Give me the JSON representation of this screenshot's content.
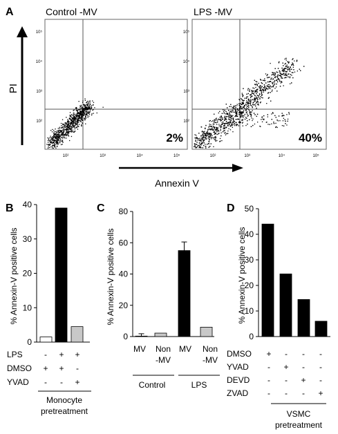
{
  "figure": {
    "panel_a": {
      "label": "A",
      "y_axis_label": "PI",
      "x_axis_label": "Annexin V",
      "plots": [
        {
          "title": "Control  -MV",
          "percent_label": "2%",
          "x_ticks": [
            "10²",
            "10³",
            "10⁴",
            "10⁵"
          ],
          "y_ticks": [
            "10⁵",
            "10⁴",
            "10³",
            "10²"
          ]
        },
        {
          "title": "LPS  -MV",
          "percent_label": "40%",
          "x_ticks": [
            "10²",
            "10³",
            "10⁴",
            "10⁵"
          ],
          "y_ticks": [
            "10⁵",
            "10⁴",
            "10³",
            "10²"
          ]
        }
      ]
    },
    "panel_b": {
      "label": "B",
      "row_labels": [
        "LPS",
        "DMSO",
        "YVAD"
      ],
      "rows": [
        [
          "-",
          "+",
          "+"
        ],
        [
          "+",
          "+",
          "-"
        ],
        [
          "-",
          "-",
          "+"
        ]
      ],
      "group_label_line1": "Monocyte",
      "group_label_line2": "pretreatment"
    },
    "panel_c": {
      "label": "C",
      "tick_labels_row1": [
        "MV",
        "Non",
        "MV",
        "Non"
      ],
      "tick_labels_row2": [
        "",
        "-MV",
        "",
        "-MV"
      ],
      "groups": [
        "Control",
        "LPS"
      ]
    },
    "panel_d": {
      "label": "D",
      "row_labels": [
        "DMSO",
        "YVAD",
        "DEVD",
        "ZVAD"
      ],
      "rows": [
        [
          "+",
          "-",
          "-",
          "-"
        ],
        [
          "-",
          "+",
          "-",
          "-"
        ],
        [
          "-",
          "-",
          "+",
          "-"
        ],
        [
          "-",
          "-",
          "-",
          "+"
        ]
      ],
      "group_label_line1": "VSMC",
      "group_label_line2": "pretreatment"
    }
  },
  "chart_data": [
    {
      "type": "scatter",
      "panel": "A-left",
      "title": "Control  -MV",
      "xlabel": "Annexin V",
      "ylabel": "PI",
      "log_scale": true,
      "xlim": [
        1,
        5
      ],
      "ylim": [
        1,
        5
      ],
      "gate": {
        "x": 2.7,
        "y": 2.7
      },
      "annotation": "2%"
    },
    {
      "type": "scatter",
      "panel": "A-right",
      "title": "LPS  -MV",
      "xlabel": "Annexin V",
      "ylabel": "PI",
      "log_scale": true,
      "xlim": [
        1,
        5
      ],
      "ylim": [
        1,
        5
      ],
      "gate": {
        "x": 2.7,
        "y": 2.7
      },
      "annotation": "40%"
    },
    {
      "type": "bar",
      "panel": "B",
      "ylabel": "% Annexin-V positive cells",
      "ylim": [
        0,
        40
      ],
      "y_ticks": [
        0,
        10,
        20,
        30,
        40
      ],
      "values": [
        1.5,
        39,
        4.5
      ],
      "colors": [
        "#ffffff",
        "#000000",
        "#c8c8c8"
      ]
    },
    {
      "type": "bar",
      "panel": "C",
      "ylabel": "% Annexin-V positive cells",
      "ylim": [
        0,
        80
      ],
      "y_ticks": [
        0,
        20,
        40,
        60,
        80
      ],
      "values": [
        0.3,
        2.2,
        55,
        6
      ],
      "errors": [
        1.5,
        0,
        5.5,
        0
      ],
      "colors": [
        "#ffffff",
        "#c8c8c8",
        "#000000",
        "#c8c8c8"
      ]
    },
    {
      "type": "bar",
      "panel": "D",
      "ylabel": "% Annexin-V positive cells",
      "ylim": [
        0,
        50
      ],
      "y_ticks": [
        0,
        10,
        20,
        30,
        40,
        50
      ],
      "values": [
        44,
        24.5,
        14.5,
        6
      ],
      "colors": [
        "#000000",
        "#000000",
        "#000000",
        "#000000"
      ]
    }
  ]
}
